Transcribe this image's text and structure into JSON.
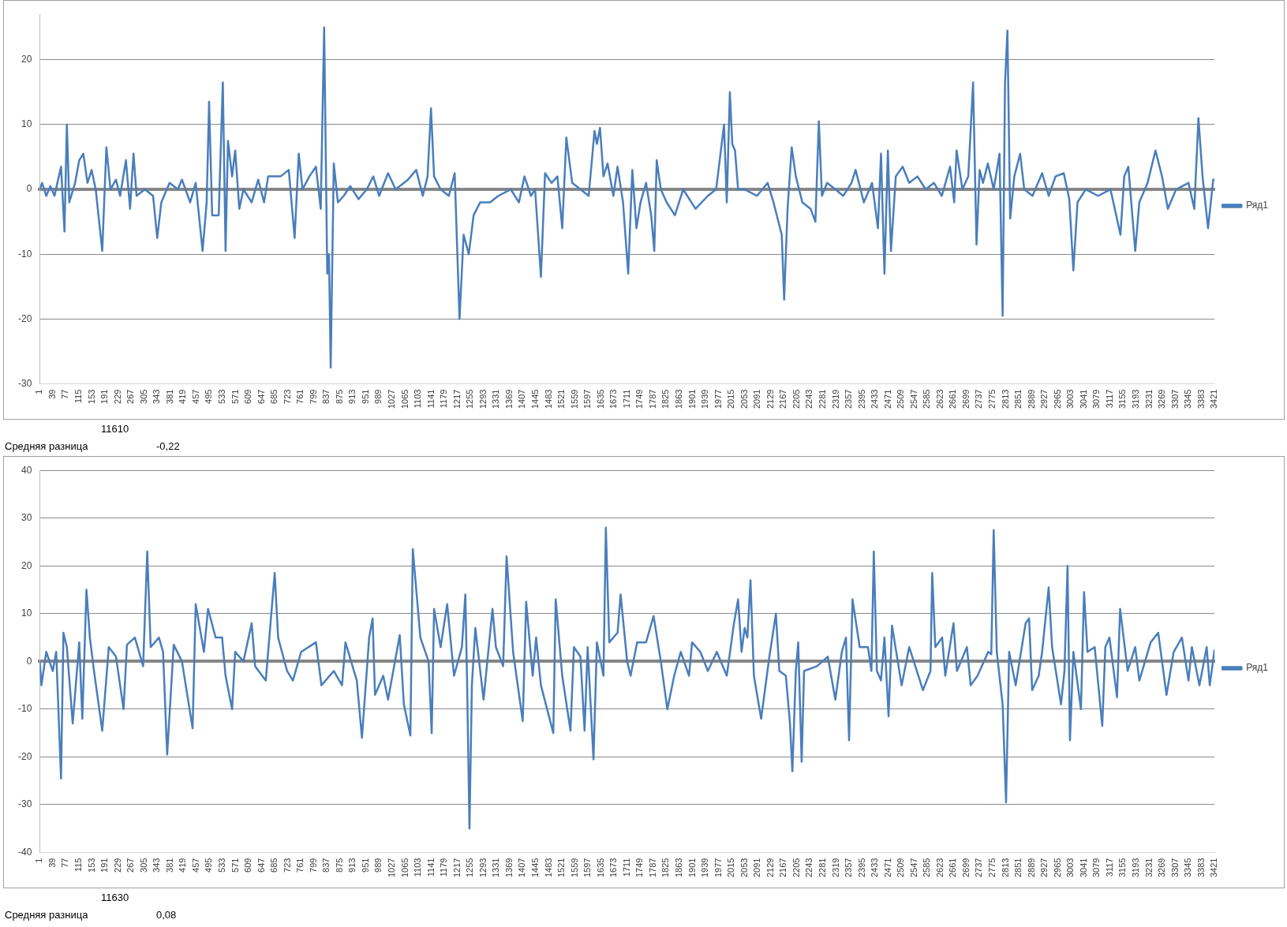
{
  "chart_data": [
    {
      "type": "line",
      "xlim": [
        1,
        3421
      ],
      "ylim": [
        -30,
        27
      ],
      "yticks": [
        -30,
        -20,
        -10,
        0,
        10,
        20
      ],
      "grid": "y",
      "legend": "right",
      "xticks": [
        1,
        39,
        77,
        115,
        153,
        191,
        229,
        267,
        305,
        343,
        381,
        419,
        457,
        495,
        533,
        571,
        609,
        647,
        685,
        723,
        761,
        799,
        837,
        875,
        913,
        951,
        989,
        1027,
        1065,
        1103,
        1141,
        1179,
        1217,
        1255,
        1293,
        1331,
        1369,
        1407,
        1445,
        1483,
        1521,
        1559,
        1597,
        1635,
        1673,
        1711,
        1749,
        1787,
        1825,
        1863,
        1901,
        1939,
        1977,
        2015,
        2053,
        2091,
        2129,
        2167,
        2205,
        2243,
        2281,
        2319,
        2357,
        2395,
        2433,
        2471,
        2509,
        2547,
        2585,
        2623,
        2661,
        2699,
        2737,
        2775,
        2813,
        2851,
        2889,
        2927,
        2965,
        3003,
        3041,
        3079,
        3117,
        3155,
        3193,
        3231,
        3269,
        3307,
        3345,
        3383,
        3421
      ],
      "x": [
        1,
        8,
        20,
        32,
        44,
        63,
        73,
        80,
        87,
        104,
        116,
        128,
        140,
        152,
        164,
        183,
        195,
        207,
        223,
        235,
        252,
        264,
        274,
        283,
        307,
        331,
        343,
        355,
        379,
        403,
        415,
        439,
        455,
        475,
        487,
        494,
        503,
        522,
        534,
        542,
        549,
        561,
        570,
        582,
        594,
        618,
        637,
        654,
        666,
        702,
        726,
        743,
        755,
        766,
        786,
        805,
        819,
        829,
        838,
        843,
        848,
        857,
        869,
        886,
        905,
        929,
        953,
        972,
        989,
        1015,
        1037,
        1073,
        1097,
        1116,
        1130,
        1140,
        1149,
        1168,
        1192,
        1209,
        1223,
        1235,
        1250,
        1264,
        1283,
        1312,
        1336,
        1372,
        1396,
        1412,
        1431,
        1443,
        1460,
        1472,
        1491,
        1508,
        1522,
        1534,
        1551,
        1575,
        1599,
        1616,
        1623,
        1632,
        1642,
        1654,
        1671,
        1683,
        1699,
        1714,
        1726,
        1738,
        1750,
        1766,
        1781,
        1790,
        1797,
        1809,
        1826,
        1850,
        1874,
        1910,
        1946,
        1970,
        1993,
        2001,
        2010,
        2017,
        2025,
        2034,
        2053,
        2089,
        2120,
        2137,
        2161,
        2168,
        2178,
        2190,
        2202,
        2221,
        2245,
        2259,
        2269,
        2278,
        2293,
        2317,
        2340,
        2364,
        2376,
        2400,
        2424,
        2441,
        2450,
        2460,
        2470,
        2479,
        2493,
        2513,
        2532,
        2556,
        2580,
        2604,
        2627,
        2651,
        2663,
        2670,
        2687,
        2704,
        2718,
        2728,
        2737,
        2747,
        2761,
        2778,
        2795,
        2804,
        2811,
        2818,
        2826,
        2838,
        2855,
        2867,
        2891,
        2919,
        2938,
        2958,
        2982,
        2998,
        3010,
        3022,
        3046,
        3082,
        3118,
        3147,
        3158,
        3170,
        3190,
        3202,
        3226,
        3249,
        3268,
        3285,
        3309,
        3345,
        3362,
        3374,
        3386,
        3402,
        3417,
        3421
      ],
      "series": [
        {
          "name": "Ряд1",
          "color": "#4a7ebb",
          "values": [
            0,
            1,
            -1,
            0.5,
            -1,
            3.5,
            -6.5,
            10,
            -2,
            1,
            4.5,
            5.5,
            1,
            3,
            0,
            -9.5,
            6.5,
            0,
            1.5,
            -1,
            4.5,
            -3,
            5.5,
            -1,
            0,
            -1,
            -7.5,
            -2,
            1,
            0,
            1.5,
            -2,
            1,
            -9.5,
            -2,
            13.5,
            -4,
            -4,
            16.5,
            -9.5,
            7.5,
            2,
            6,
            -3,
            0,
            -2,
            1.5,
            -2,
            2,
            2,
            3,
            -7.5,
            5.5,
            0,
            2,
            3.5,
            -3,
            25,
            -13,
            -10,
            -27.5,
            4,
            -2,
            -1,
            0.5,
            -1.5,
            0,
            2,
            -1,
            2.5,
            0,
            1.5,
            3,
            -1,
            2,
            12.5,
            2,
            0,
            -1,
            2.5,
            -20,
            -7,
            -10,
            -4,
            -2,
            -2,
            -1,
            0,
            -2,
            2,
            -1,
            0,
            -13.5,
            2.5,
            1,
            2,
            -6,
            8,
            1,
            0,
            -1,
            9,
            7,
            9.5,
            2,
            4,
            -1,
            3.5,
            -2,
            -13,
            3,
            -6,
            -2,
            1,
            -4,
            -9.5,
            4.5,
            0,
            -2,
            -4,
            0,
            -3,
            -1,
            0,
            10,
            -2,
            15,
            7,
            6,
            0,
            0,
            -1,
            1,
            -2,
            -7,
            -17,
            -3,
            6.5,
            2,
            -2,
            -3,
            -5,
            10.5,
            -1,
            1,
            0,
            -1,
            1,
            3,
            -2,
            1,
            -6,
            5.5,
            -13,
            6,
            -9.5,
            2,
            3.5,
            1,
            2,
            0,
            1,
            -1,
            3.5,
            -2,
            6,
            0,
            2,
            16.5,
            -8.5,
            3,
            1,
            4,
            0,
            5.5,
            -19.5,
            16.5,
            24.5,
            -4.5,
            2,
            5.5,
            0,
            -1,
            2.5,
            -1,
            2,
            2.5,
            -1.5,
            -12.5,
            -2,
            0,
            -1,
            0,
            -7,
            2,
            3.5,
            -9.5,
            -2,
            1,
            6,
            2,
            -3,
            0,
            1,
            -3,
            11,
            2,
            -6,
            1.5,
            1.5
          ]
        }
      ],
      "annotations": [
        "11610",
        "Средняя разница",
        "-0,22"
      ]
    },
    {
      "type": "line",
      "xlim": [
        1,
        3421
      ],
      "ylim": [
        -40,
        40
      ],
      "yticks": [
        -40,
        -30,
        -20,
        -10,
        0,
        10,
        20,
        30,
        40
      ],
      "grid": "y",
      "legend": "right",
      "xticks": [
        1,
        39,
        77,
        115,
        153,
        191,
        229,
        267,
        305,
        343,
        381,
        419,
        457,
        495,
        533,
        571,
        609,
        647,
        685,
        723,
        761,
        799,
        837,
        875,
        913,
        951,
        989,
        1027,
        1065,
        1103,
        1141,
        1179,
        1217,
        1255,
        1293,
        1331,
        1369,
        1407,
        1445,
        1483,
        1521,
        1559,
        1597,
        1635,
        1673,
        1711,
        1749,
        1787,
        1825,
        1863,
        1901,
        1939,
        1977,
        2015,
        2053,
        2091,
        2129,
        2167,
        2205,
        2243,
        2281,
        2319,
        2357,
        2395,
        2433,
        2471,
        2509,
        2547,
        2585,
        2623,
        2661,
        2699,
        2737,
        2775,
        2813,
        2851,
        2889,
        2927,
        2965,
        3003,
        3041,
        3079,
        3117,
        3155,
        3193,
        3231,
        3269,
        3307,
        3345,
        3383,
        3421
      ],
      "x": [
        1,
        6,
        20,
        39,
        49,
        63,
        70,
        80,
        97,
        116,
        125,
        137,
        147,
        159,
        183,
        202,
        223,
        245,
        255,
        278,
        302,
        314,
        324,
        348,
        360,
        372,
        391,
        415,
        446,
        455,
        479,
        491,
        513,
        532,
        542,
        561,
        570,
        594,
        618,
        628,
        659,
        685,
        695,
        721,
        738,
        762,
        805,
        821,
        857,
        881,
        891,
        924,
        939,
        960,
        970,
        977,
        1001,
        1015,
        1049,
        1061,
        1080,
        1087,
        1109,
        1133,
        1142,
        1149,
        1168,
        1187,
        1207,
        1230,
        1240,
        1245,
        1252,
        1259,
        1269,
        1293,
        1319,
        1329,
        1350,
        1360,
        1379,
        1407,
        1417,
        1436,
        1446,
        1460,
        1496,
        1503,
        1522,
        1546,
        1556,
        1575,
        1587,
        1596,
        1613,
        1623,
        1642,
        1649,
        1659,
        1683,
        1692,
        1711,
        1721,
        1740,
        1766,
        1788,
        1809,
        1828,
        1848,
        1867,
        1891,
        1900,
        1924,
        1946,
        1972,
        2001,
        2022,
        2034,
        2044,
        2053,
        2061,
        2070,
        2080,
        2101,
        2125,
        2144,
        2154,
        2173,
        2185,
        2192,
        2202,
        2209,
        2219,
        2226,
        2264,
        2295,
        2317,
        2336,
        2348,
        2357,
        2367,
        2388,
        2412,
        2422,
        2429,
        2438,
        2450,
        2460,
        2472,
        2482,
        2510,
        2532,
        2572,
        2594,
        2599,
        2608,
        2628,
        2637,
        2661,
        2671,
        2700,
        2711,
        2731,
        2762,
        2771,
        2778,
        2787,
        2804,
        2814,
        2823,
        2842,
        2871,
        2881,
        2890,
        2909,
        2919,
        2938,
        2948,
        2974,
        2984,
        2993,
        3000,
        3010,
        3032,
        3041,
        3051,
        3072,
        3094,
        3103,
        3115,
        3137,
        3146,
        3168,
        3190,
        3202,
        3235,
        3257,
        3281,
        3302,
        3326,
        3345,
        3355,
        3377,
        3398,
        3407,
        3421
      ],
      "series": [
        {
          "name": "Ряд1",
          "color": "#4a7ebb",
          "values": [
            0,
            -5,
            2,
            -2,
            2,
            -24.5,
            6,
            3,
            -13,
            4,
            -12,
            15,
            5,
            -2,
            -14.5,
            3,
            1,
            -10,
            3.5,
            5,
            -1,
            23,
            3,
            5,
            2,
            -19.5,
            3.5,
            0,
            -14,
            12,
            2,
            11,
            5,
            5,
            -3,
            -10,
            2,
            0,
            8,
            -1,
            -4,
            18.5,
            5,
            -2,
            -4,
            2,
            4,
            -5,
            -2,
            -5,
            4,
            -4,
            -16,
            5,
            9,
            -7,
            -3,
            -8,
            5.5,
            -9,
            -15.5,
            23.5,
            5,
            0,
            -15,
            11,
            3,
            12,
            -3,
            3,
            14,
            -4,
            -35,
            -5,
            7,
            -8,
            11,
            3,
            -1,
            22,
            2,
            -12.5,
            12.5,
            -3,
            5,
            -5,
            -15,
            13,
            -3,
            -14.5,
            3,
            1,
            -14.5,
            3,
            -20.5,
            4,
            -3,
            28,
            4,
            6,
            14,
            0,
            -3,
            4,
            4,
            9.5,
            0,
            -10,
            -3,
            2,
            -3,
            4,
            2,
            -2,
            2,
            -3,
            8,
            13,
            2,
            7,
            5,
            17,
            -3,
            -12,
            1,
            10,
            -2,
            -3,
            -13,
            -23,
            -2,
            4,
            -21,
            -2,
            -1,
            1,
            -8,
            2,
            5,
            -16.5,
            13,
            3,
            3,
            -2,
            23,
            -2,
            -4,
            5,
            -11.5,
            7.5,
            -5,
            3,
            -6,
            -2,
            18.5,
            3,
            5,
            -3,
            8,
            -2,
            3,
            -5,
            -3,
            2,
            1.5,
            27.5,
            2,
            -9,
            -29.5,
            2,
            -5,
            8,
            9,
            -6,
            -3,
            2,
            15.5,
            3,
            -9,
            -2,
            20,
            -16.5,
            2,
            -10,
            14.5,
            2,
            3,
            -13.5,
            3,
            5,
            -7.5,
            11,
            -2,
            3,
            -4,
            4,
            6,
            -7,
            2,
            5,
            -4,
            3,
            -5,
            3,
            -5,
            2.5
          ]
        }
      ],
      "annotations": [
        "11630",
        "Средняя разница",
        "0,08"
      ]
    }
  ]
}
